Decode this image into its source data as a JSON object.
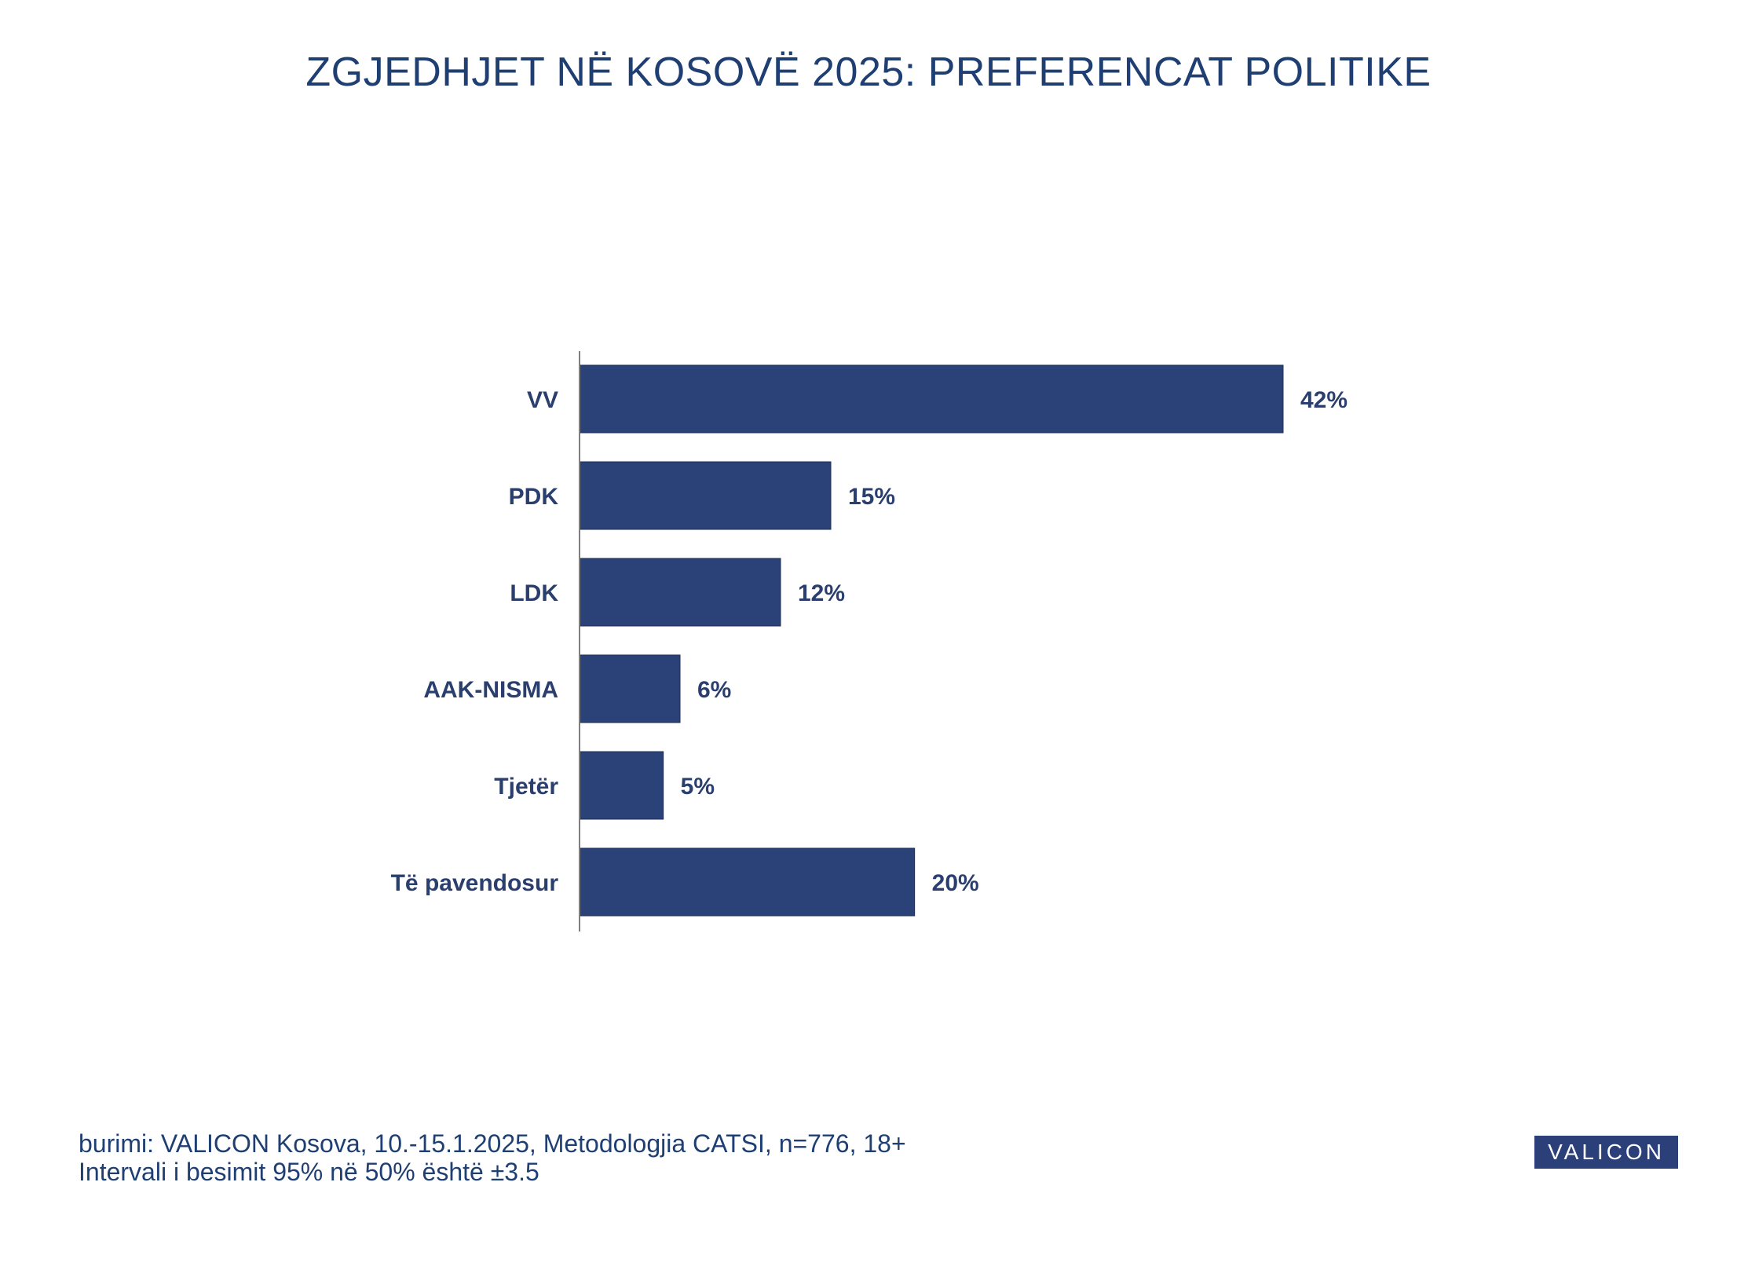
{
  "title": "ZGJEDHJET NË KOSOVË 2025: PREFERENCAT POLITIKE",
  "colors": {
    "bar": "#2b4279",
    "text": "#1f3f73",
    "axis": "#7f7f7f"
  },
  "chart_data": {
    "type": "bar",
    "orientation": "horizontal",
    "categories": [
      "VV",
      "PDK",
      "LDK",
      "AAK-NISMA",
      "Tjetër",
      "Të pavendosur"
    ],
    "values": [
      42,
      15,
      12,
      6,
      5,
      20
    ],
    "value_labels": [
      "42%",
      "15%",
      "12%",
      "6%",
      "5%",
      "20%"
    ],
    "unit": "%",
    "xlim": [
      0,
      42
    ],
    "grid": false,
    "legend": "none"
  },
  "footer": {
    "source": "burimi: VALICON Kosova, 10.-15.1.2025, Metodologjia CATSI, n=776, 18+",
    "interval": "Intervali i besimit 95% në 50% është ±3.5"
  },
  "logo": "VALICON"
}
